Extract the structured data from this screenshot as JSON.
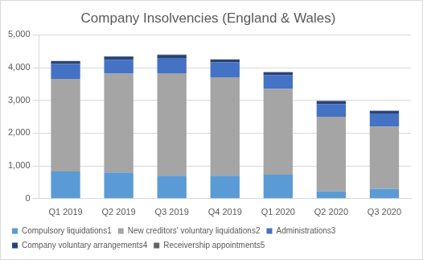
{
  "chart_data": {
    "type": "bar",
    "title": "Company Insolvencies (England & Wales)",
    "categories": [
      "Q1 2019",
      "Q2 2019",
      "Q3 2019",
      "Q4 2019",
      "Q1 2020",
      "Q2 2020",
      "Q3 2020"
    ],
    "series": [
      {
        "name": "Compulsory liquidations1",
        "color": "#5b9bd5",
        "values": [
          830,
          800,
          700,
          700,
          730,
          220,
          300
        ]
      },
      {
        "name": "New creditors' voluntary liquidations2",
        "color": "#a5a5a5",
        "values": [
          2830,
          3020,
          3130,
          3010,
          2620,
          2280,
          1900
        ]
      },
      {
        "name": "Administrations3",
        "color": "#4472c4",
        "values": [
          450,
          420,
          450,
          450,
          420,
          390,
          400
        ]
      },
      {
        "name": "Company voluntary arrangements4",
        "color": "#264478",
        "values": [
          90,
          100,
          110,
          90,
          90,
          90,
          80
        ]
      },
      {
        "name": "Receivership appointments5",
        "color": "#636363",
        "values": [
          5,
          5,
          10,
          5,
          5,
          5,
          5
        ]
      }
    ],
    "ylim": [
      0,
      5000
    ],
    "yticks": [
      0,
      {
        "value": 1000,
        "label": "1,000"
      },
      {
        "value": 2000,
        "label": "2,000"
      },
      {
        "value": 3000,
        "label": "3,000"
      },
      {
        "value": 4000,
        "label": "4,000"
      },
      {
        "value": 5000,
        "label": "5,000"
      }
    ],
    "grid": true,
    "stacked": true,
    "legend": "bottom"
  }
}
